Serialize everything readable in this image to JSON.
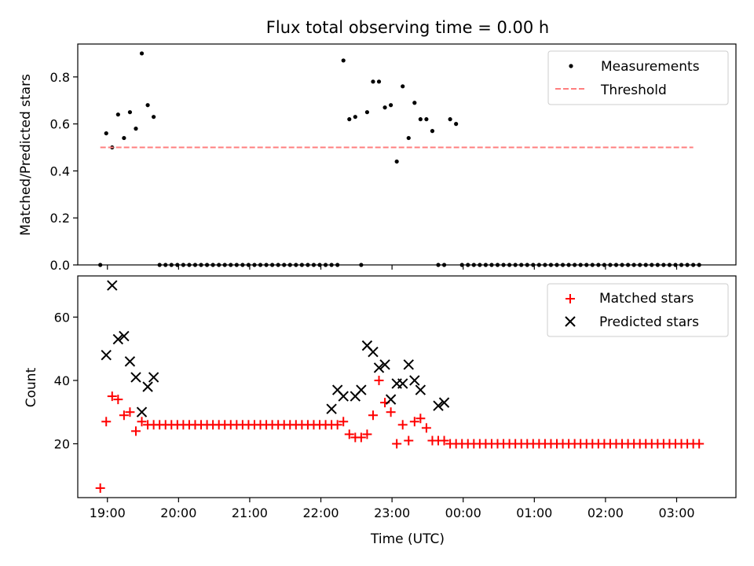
{
  "chart_data": [
    {
      "type": "scatter",
      "title": "Flux total observing time = 0.00 h",
      "ylabel": "Matched/Predicted stars",
      "xlabel": "",
      "ylim": [
        0,
        0.94
      ],
      "yticks": [
        0.0,
        0.2,
        0.4,
        0.6,
        0.8
      ],
      "xlim": [
        "18:35",
        "03:50"
      ],
      "xticks": [
        "19:00",
        "20:00",
        "21:00",
        "22:00",
        "23:00",
        "00:00",
        "01:00",
        "02:00",
        "03:00"
      ],
      "grid": false,
      "legend_position": "top-right",
      "series": [
        {
          "name": "Measurements",
          "marker": "dot",
          "color": "#000000",
          "x": [
            "18:54",
            "18:59",
            "19:04",
            "19:09",
            "19:14",
            "19:19",
            "19:24",
            "19:29",
            "19:34",
            "19:39",
            "19:44",
            "19:49",
            "19:54",
            "19:59",
            "20:04",
            "20:09",
            "20:14",
            "20:19",
            "20:24",
            "20:29",
            "20:34",
            "20:39",
            "20:44",
            "20:49",
            "20:54",
            "20:59",
            "21:04",
            "21:09",
            "21:14",
            "21:19",
            "21:24",
            "21:29",
            "21:34",
            "21:39",
            "21:44",
            "21:49",
            "21:54",
            "21:59",
            "22:04",
            "22:09",
            "22:14",
            "22:19",
            "22:24",
            "22:29",
            "22:34",
            "22:39",
            "22:44",
            "22:49",
            "22:54",
            "22:59",
            "23:04",
            "23:09",
            "23:14",
            "23:19",
            "23:24",
            "23:29",
            "23:34",
            "23:39",
            "23:44",
            "23:49",
            "23:54",
            "23:59",
            "00:04",
            "00:09",
            "00:14",
            "00:19",
            "00:24",
            "00:29",
            "00:34",
            "00:39",
            "00:44",
            "00:49",
            "00:54",
            "00:59",
            "01:04",
            "01:09",
            "01:14",
            "01:19",
            "01:24",
            "01:29",
            "01:34",
            "01:39",
            "01:44",
            "01:49",
            "01:54",
            "01:59",
            "02:04",
            "02:09",
            "02:14",
            "02:19",
            "02:24",
            "02:29",
            "02:34",
            "02:39",
            "02:44",
            "02:49",
            "02:54",
            "02:59",
            "03:04",
            "03:09",
            "03:14",
            "03:19"
          ],
          "y": [
            0.0,
            0.56,
            0.5,
            0.64,
            0.54,
            0.65,
            0.58,
            0.9,
            0.68,
            0.63,
            0.0,
            0.0,
            0.0,
            0.0,
            0.0,
            0.0,
            0.0,
            0.0,
            0.0,
            0.0,
            0.0,
            0.0,
            0.0,
            0.0,
            0.0,
            0.0,
            0.0,
            0.0,
            0.0,
            0.0,
            0.0,
            0.0,
            0.0,
            0.0,
            0.0,
            0.0,
            0.0,
            0.0,
            0.0,
            0.0,
            0.0,
            0.87,
            0.62,
            0.63,
            0.0,
            0.65,
            0.78,
            0.78,
            0.67,
            0.68,
            0.44,
            0.76,
            0.54,
            0.69,
            0.62,
            0.62,
            0.57,
            0.0,
            0.0,
            0.62,
            0.6,
            0.0,
            0.0,
            0.0,
            0.0,
            0.0,
            0.0,
            0.0,
            0.0,
            0.0,
            0.0,
            0.0,
            0.0,
            0.0,
            0.0,
            0.0,
            0.0,
            0.0,
            0.0,
            0.0,
            0.0,
            0.0,
            0.0,
            0.0,
            0.0,
            0.0,
            0.0,
            0.0,
            0.0,
            0.0,
            0.0,
            0.0,
            0.0,
            0.0,
            0.0,
            0.0,
            0.0,
            0.0,
            0.0,
            0.0,
            0.0,
            0.0
          ]
        },
        {
          "name": "Threshold",
          "marker": "dashed-line",
          "color": "#ff7f7f",
          "x": [
            "18:54",
            "03:14"
          ],
          "y": [
            0.5,
            0.5
          ]
        }
      ]
    },
    {
      "type": "scatter",
      "title": "",
      "ylabel": "Count",
      "xlabel": "Time (UTC)",
      "ylim": [
        3,
        73
      ],
      "yticks": [
        20,
        40,
        60
      ],
      "xlim": [
        "18:35",
        "03:50"
      ],
      "xticks": [
        "19:00",
        "20:00",
        "21:00",
        "22:00",
        "23:00",
        "00:00",
        "01:00",
        "02:00",
        "03:00"
      ],
      "grid": false,
      "legend_position": "top-right",
      "series": [
        {
          "name": "Matched stars",
          "marker": "plus",
          "color": "#ff0000",
          "x": [
            "18:54",
            "18:59",
            "19:04",
            "19:09",
            "19:14",
            "19:19",
            "19:24",
            "19:29",
            "19:34",
            "19:39",
            "19:44",
            "19:49",
            "19:54",
            "19:59",
            "20:04",
            "20:09",
            "20:14",
            "20:19",
            "20:24",
            "20:29",
            "20:34",
            "20:39",
            "20:44",
            "20:49",
            "20:54",
            "20:59",
            "21:04",
            "21:09",
            "21:14",
            "21:19",
            "21:24",
            "21:29",
            "21:34",
            "21:39",
            "21:44",
            "21:49",
            "21:54",
            "21:59",
            "22:04",
            "22:09",
            "22:14",
            "22:19",
            "22:24",
            "22:29",
            "22:34",
            "22:39",
            "22:44",
            "22:49",
            "22:54",
            "22:59",
            "23:04",
            "23:09",
            "23:14",
            "23:19",
            "23:24",
            "23:29",
            "23:34",
            "23:39",
            "23:44",
            "23:49",
            "23:54",
            "23:59",
            "00:04",
            "00:09",
            "00:14",
            "00:19",
            "00:24",
            "00:29",
            "00:34",
            "00:39",
            "00:44",
            "00:49",
            "00:54",
            "00:59",
            "01:04",
            "01:09",
            "01:14",
            "01:19",
            "01:24",
            "01:29",
            "01:34",
            "01:39",
            "01:44",
            "01:49",
            "01:54",
            "01:59",
            "02:04",
            "02:09",
            "02:14",
            "02:19",
            "02:24",
            "02:29",
            "02:34",
            "02:39",
            "02:44",
            "02:49",
            "02:54",
            "02:59",
            "03:04",
            "03:09",
            "03:14",
            "03:19"
          ],
          "y": [
            6,
            27,
            35,
            34,
            29,
            30,
            24,
            27,
            26,
            26,
            26,
            26,
            26,
            26,
            26,
            26,
            26,
            26,
            26,
            26,
            26,
            26,
            26,
            26,
            26,
            26,
            26,
            26,
            26,
            26,
            26,
            26,
            26,
            26,
            26,
            26,
            26,
            26,
            26,
            26,
            26,
            27,
            23,
            22,
            22,
            23,
            29,
            40,
            33,
            30,
            20,
            26,
            21,
            27,
            28,
            25,
            21,
            21,
            21,
            20,
            20,
            20,
            20,
            20,
            20,
            20,
            20,
            20,
            20,
            20,
            20,
            20,
            20,
            20,
            20,
            20,
            20,
            20,
            20,
            20,
            20,
            20,
            20,
            20,
            20,
            20,
            20,
            20,
            20,
            20,
            20,
            20,
            20,
            20,
            20,
            20,
            20,
            20,
            20,
            20,
            20,
            20
          ]
        },
        {
          "name": "Predicted stars",
          "marker": "x",
          "color": "#000000",
          "x": [
            "18:59",
            "19:04",
            "19:09",
            "19:14",
            "19:19",
            "19:24",
            "19:29",
            "19:34",
            "19:39",
            "22:09",
            "22:14",
            "22:19",
            "22:29",
            "22:34",
            "22:39",
            "22:44",
            "22:49",
            "22:54",
            "22:59",
            "23:04",
            "23:09",
            "23:14",
            "23:19",
            "23:24",
            "23:39",
            "23:44"
          ],
          "y": [
            48,
            70,
            53,
            54,
            46,
            41,
            30,
            38,
            41,
            31,
            37,
            35,
            35,
            37,
            51,
            49,
            44,
            45,
            34,
            39,
            39,
            45,
            40,
            37,
            32,
            33
          ]
        }
      ]
    }
  ]
}
